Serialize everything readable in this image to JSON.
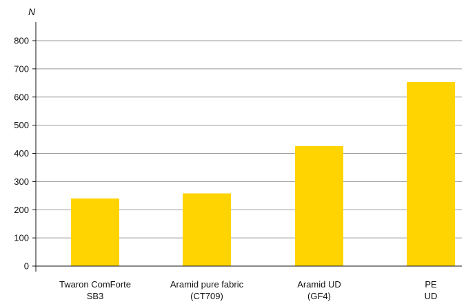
{
  "chart_data": {
    "type": "bar",
    "title": "",
    "xlabel": "",
    "ylabel": "N",
    "categories": [
      [
        "Twaron ComForte",
        "SB3"
      ],
      [
        "Aramid pure fabric",
        "(CT709)"
      ],
      [
        "Aramid UD",
        "(GF4)"
      ],
      [
        "PE",
        "UD"
      ]
    ],
    "values": [
      240,
      258,
      426,
      653
    ],
    "ylim": [
      0,
      800
    ],
    "yticks": [
      0,
      100,
      200,
      300,
      400,
      500,
      600,
      700,
      800
    ],
    "grid": true,
    "legend": "none",
    "colors": {
      "bar": "#FFD400",
      "grid": "#9a9a9a",
      "axis": "#111111"
    }
  }
}
